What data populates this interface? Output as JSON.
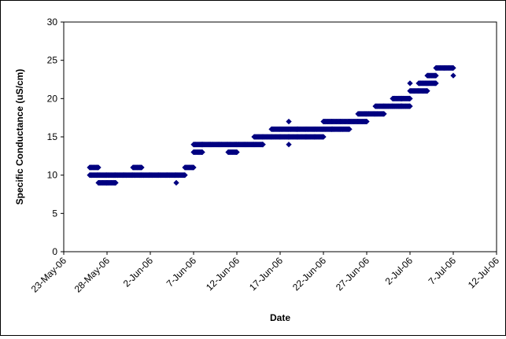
{
  "chart_data": {
    "type": "scatter",
    "title": "",
    "xlabel": "Date",
    "ylabel": "Specific Conductance (uS/cm)",
    "ylim": [
      0,
      30
    ],
    "yticks": [
      0,
      5,
      10,
      15,
      20,
      25,
      30
    ],
    "xlim": [
      "2006-05-23",
      "2006-07-12"
    ],
    "xtick_labels": [
      "23-May-06",
      "28-May-06",
      "2-Jun-06",
      "7-Jun-06",
      "12-Jun-06",
      "17-Jun-06",
      "22-Jun-06",
      "27-Jun-06",
      "2-Jul-06",
      "7-Jul-06",
      "12-Jul-06"
    ],
    "grid": false,
    "legend": "none",
    "marker_color": "#000080",
    "marker": "diamond",
    "segments": [
      {
        "start": "2006-05-26",
        "end": "2006-05-27",
        "value": 11
      },
      {
        "start": "2006-05-26",
        "end": "2006-06-06",
        "value": 10
      },
      {
        "start": "2006-05-27",
        "end": "2006-05-29",
        "value": 9
      },
      {
        "start": "2006-05-31",
        "end": "2006-06-01",
        "value": 11
      },
      {
        "start": "2006-06-06",
        "end": "2006-06-07",
        "value": 11
      },
      {
        "start": "2006-06-07",
        "end": "2006-06-15",
        "value": 14
      },
      {
        "start": "2006-06-07",
        "end": "2006-06-08",
        "value": 13
      },
      {
        "start": "2006-06-11",
        "end": "2006-06-12",
        "value": 13
      },
      {
        "start": "2006-06-14",
        "end": "2006-06-18",
        "value": 15
      },
      {
        "start": "2006-06-16",
        "end": "2006-06-19",
        "value": 16
      },
      {
        "start": "2006-06-18",
        "end": "2006-06-22",
        "value": 15
      },
      {
        "start": "2006-06-19",
        "end": "2006-06-23",
        "value": 16
      },
      {
        "start": "2006-06-22",
        "end": "2006-06-27",
        "value": 17
      },
      {
        "start": "2006-06-23",
        "end": "2006-06-25",
        "value": 16
      },
      {
        "start": "2006-06-26",
        "end": "2006-06-29",
        "value": 18
      },
      {
        "start": "2006-06-28",
        "end": "2006-07-01",
        "value": 19
      },
      {
        "start": "2006-06-30",
        "end": "2006-07-01",
        "value": 20
      },
      {
        "start": "2006-07-01",
        "end": "2006-07-02",
        "value": 19
      },
      {
        "start": "2006-07-01",
        "end": "2006-07-02",
        "value": 20
      },
      {
        "start": "2006-07-02",
        "end": "2006-07-04",
        "value": 21
      },
      {
        "start": "2006-07-03",
        "end": "2006-07-05",
        "value": 22
      },
      {
        "start": "2006-07-04",
        "end": "2006-07-05",
        "value": 23
      },
      {
        "start": "2006-07-05",
        "end": "2006-07-07",
        "value": 24
      }
    ],
    "points": [
      {
        "x": "2006-06-05",
        "y": 9
      },
      {
        "x": "2006-06-08",
        "y": 13
      },
      {
        "x": "2006-06-08",
        "y": 14
      },
      {
        "x": "2006-06-15",
        "y": 14
      },
      {
        "x": "2006-06-18",
        "y": 14
      },
      {
        "x": "2006-06-18",
        "y": 17
      },
      {
        "x": "2006-07-02",
        "y": 22
      },
      {
        "x": "2006-07-07",
        "y": 23
      }
    ]
  }
}
